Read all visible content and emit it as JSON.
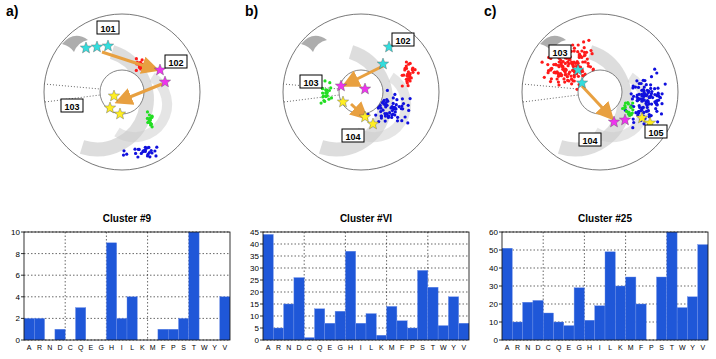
{
  "chart_data": [
    {
      "type": "bar",
      "title": "Cluster #9",
      "categories": [
        "A",
        "R",
        "N",
        "D",
        "C",
        "Q",
        "E",
        "G",
        "H",
        "I",
        "L",
        "K",
        "M",
        "F",
        "P",
        "S",
        "T",
        "W",
        "Y",
        "V"
      ],
      "values": [
        2,
        2,
        0,
        1,
        0,
        3,
        0,
        0,
        9,
        2,
        4,
        0,
        0,
        1,
        1,
        2,
        10,
        0,
        0,
        4
      ],
      "color": "#1f57d8",
      "ylim": [
        0,
        10
      ],
      "yticks": [
        0,
        2,
        4,
        6,
        8,
        10
      ],
      "grid": true
    },
    {
      "type": "bar",
      "title": "Cluster #VI",
      "categories": [
        "A",
        "R",
        "N",
        "D",
        "C",
        "Q",
        "E",
        "G",
        "H",
        "I",
        "L",
        "K",
        "M",
        "F",
        "P",
        "S",
        "T",
        "W",
        "Y",
        "V"
      ],
      "values": [
        44,
        5,
        15,
        26,
        1,
        13,
        7,
        12,
        37,
        7,
        11,
        2,
        14,
        8,
        5,
        29,
        22,
        6,
        18,
        7
      ],
      "color": "#1f57d8",
      "ylim": [
        0,
        45
      ],
      "yticks": [
        0,
        5,
        10,
        15,
        20,
        25,
        30,
        35,
        40,
        45
      ],
      "grid": true
    },
    {
      "type": "bar",
      "title": "Cluster #25",
      "categories": [
        "A",
        "R",
        "N",
        "D",
        "C",
        "Q",
        "E",
        "G",
        "H",
        "I",
        "L",
        "K",
        "M",
        "F",
        "P",
        "S",
        "T",
        "W",
        "Y",
        "V"
      ],
      "values": [
        51,
        10,
        21,
        22,
        15,
        10,
        8,
        29,
        11,
        19,
        49,
        30,
        35,
        20,
        0,
        35,
        60,
        18,
        24,
        53
      ],
      "color": "#1f57d8",
      "ylim": [
        0,
        60
      ],
      "yticks": [
        0,
        10,
        20,
        30,
        40,
        50,
        60
      ],
      "grid": true
    }
  ],
  "panels": [
    {
      "letter": "a)",
      "labels": [
        "101",
        "102",
        "103"
      ]
    },
    {
      "letter": "b)",
      "labels": [
        "102",
        "103",
        "104"
      ]
    },
    {
      "letter": "c)",
      "labels": [
        "103",
        "104",
        "105"
      ]
    }
  ]
}
